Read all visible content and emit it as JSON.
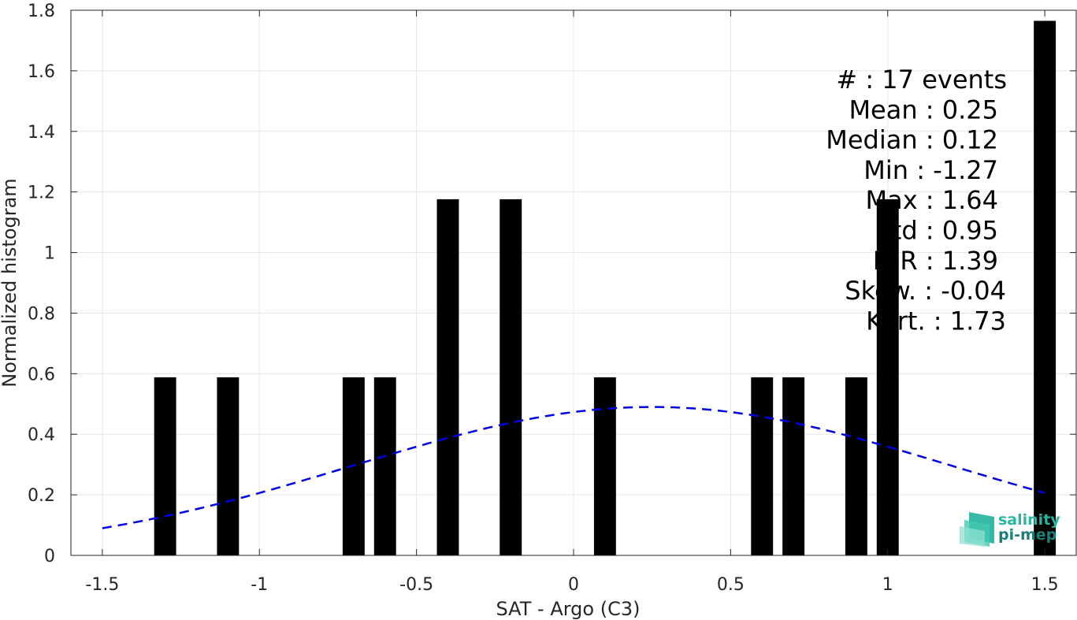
{
  "chart_data": {
    "type": "bar",
    "xlabel": "SAT - Argo (C3)",
    "ylabel": "Normalized histogram",
    "xlim": [
      -1.6,
      1.6
    ],
    "ylim": [
      0,
      1.8
    ],
    "grid": true,
    "xticks": [
      -1.5,
      -1,
      -0.5,
      0,
      0.5,
      1,
      1.5
    ],
    "xtick_labels": [
      "-1.5",
      "-1",
      "-0.5",
      "0",
      "0.5",
      "1",
      "1.5"
    ],
    "yticks": [
      0,
      0.2,
      0.4,
      0.6,
      0.8,
      1,
      1.2,
      1.4,
      1.6,
      1.8
    ],
    "ytick_labels": [
      "0",
      "0.2",
      "0.4",
      "0.6",
      "0.8",
      "1",
      "1.2",
      "1.4",
      "1.6",
      "1.8"
    ],
    "bar_width": 0.07,
    "bar_color": "#000000",
    "bars": [
      {
        "x": -1.3,
        "value": 0.588
      },
      {
        "x": -1.1,
        "value": 0.588
      },
      {
        "x": -0.7,
        "value": 0.588
      },
      {
        "x": -0.6,
        "value": 0.588
      },
      {
        "x": -0.4,
        "value": 1.176
      },
      {
        "x": -0.2,
        "value": 1.176
      },
      {
        "x": 0.1,
        "value": 0.588
      },
      {
        "x": 0.6,
        "value": 0.588
      },
      {
        "x": 0.7,
        "value": 0.588
      },
      {
        "x": 0.9,
        "value": 0.588
      },
      {
        "x": 1.0,
        "value": 1.176
      },
      {
        "x": 1.5,
        "value": 1.765
      }
    ],
    "fit_curve": {
      "style": "dashed",
      "color": "#0000e6",
      "mean": 0.25,
      "std": 0.95,
      "amplitude": 0.49,
      "x_range": [
        -1.5,
        1.5
      ]
    },
    "stats_lines": [
      "#  : 17 events",
      "Mean : 0.25",
      "Median : 0.12",
      "Min : -1.27",
      "Max : 1.64",
      "Std : 0.95",
      "IQR : 1.39",
      "Skew. : -0.04",
      "Kurt. : 1.73"
    ]
  },
  "logo": {
    "line1": "salinity",
    "line2": "pi-mep",
    "color_primary": "#2bb5a0",
    "color_secondary": "#1a7f78"
  }
}
